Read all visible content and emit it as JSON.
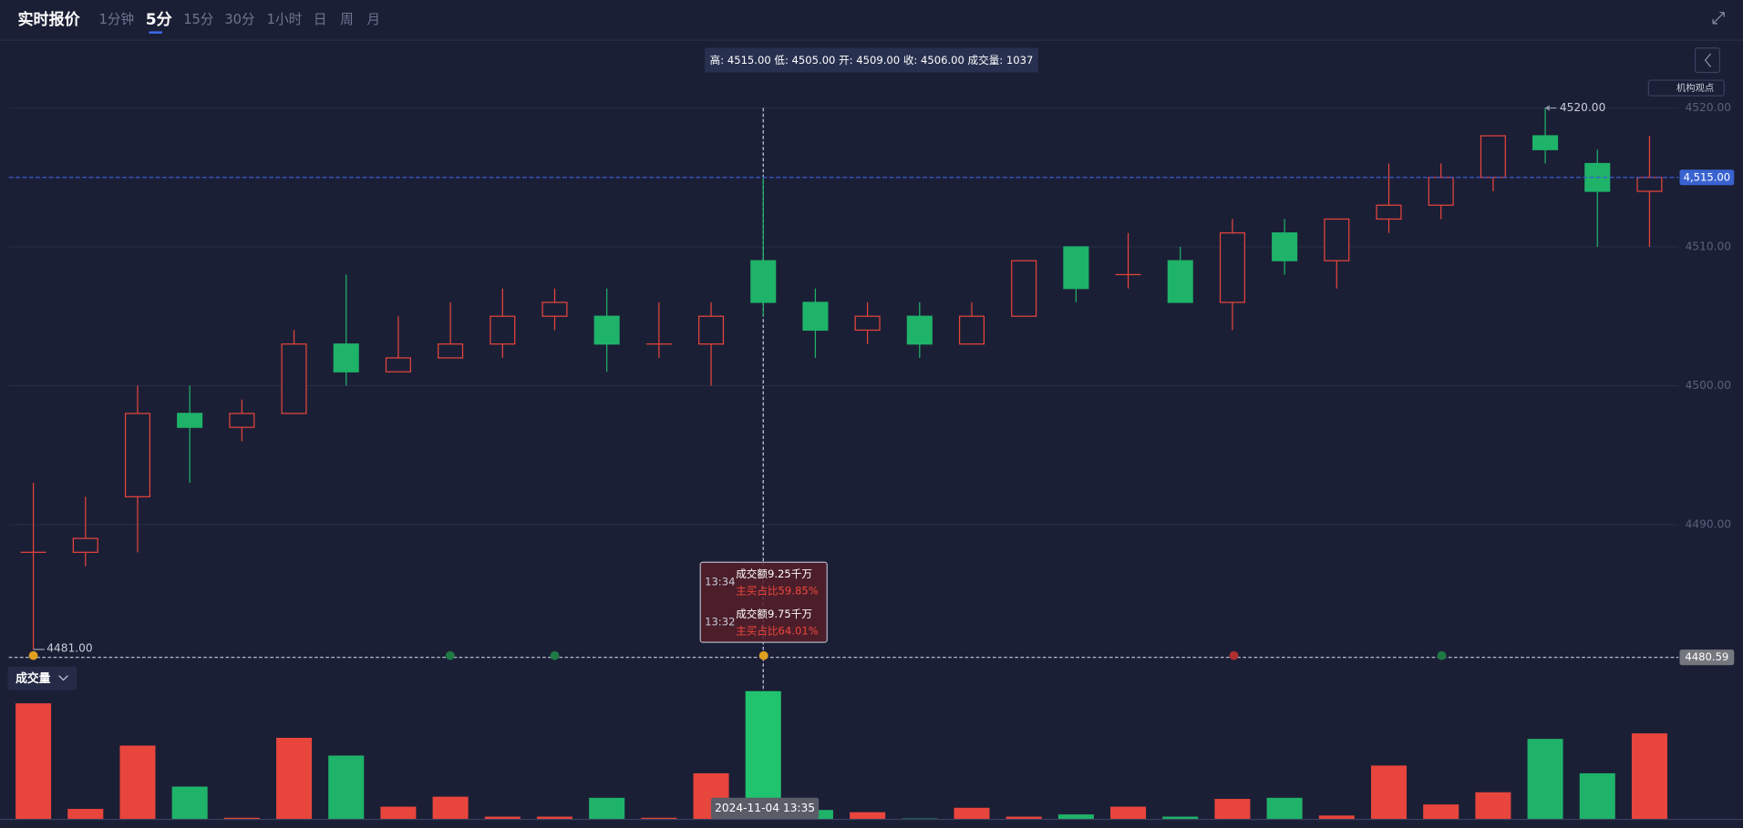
{
  "header": {
    "title": "实时报价",
    "tabs": [
      "1分钟",
      "5分",
      "15分",
      "30分",
      "1小时",
      "日",
      "周",
      "月"
    ],
    "active_tab": 1
  },
  "info_bar": "高: 4515.00 低: 4505.00 开: 4509.00 收: 4506.00 成交量: 1037",
  "view_button": "机构观点",
  "chart_data": {
    "type": "candlestick",
    "open": [
      4488,
      4488,
      4492,
      4498,
      4497,
      4498,
      4503,
      4501,
      4502,
      4503,
      4505,
      4505,
      4503,
      4503,
      4509,
      4506,
      4504,
      4505,
      4503,
      4505,
      4510,
      4508,
      4509,
      4506,
      4511,
      4509,
      4512,
      4513,
      4515,
      4518,
      4516,
      4514
    ],
    "high": [
      4493,
      4492,
      4500,
      4500,
      4499,
      4504,
      4508,
      4505,
      4506,
      4507,
      4507,
      4507,
      4506,
      4506,
      4515,
      4507,
      4506,
      4506,
      4506,
      4509,
      4510,
      4511,
      4510,
      4512,
      4512,
      4512,
      4516,
      4516,
      4518,
      4520,
      4517,
      4518
    ],
    "low": [
      4481,
      4487,
      4488,
      4493,
      4496,
      4498,
      4500,
      4501,
      4502,
      4502,
      4504,
      4501,
      4502,
      4500,
      4505,
      4502,
      4503,
      4502,
      4503,
      4505,
      4506,
      4507,
      4506,
      4504,
      4508,
      4507,
      4511,
      4512,
      4514,
      4516,
      4510,
      4510
    ],
    "close": [
      4488,
      4489,
      4498,
      4497,
      4498,
      4503,
      4501,
      4502,
      4503,
      4505,
      4506,
      4503,
      4503,
      4505,
      4506,
      4504,
      4505,
      4503,
      4505,
      4509,
      4507,
      4508,
      4506,
      4511,
      4509,
      4512,
      4513,
      4515,
      4518,
      4517,
      4514,
      4515
    ],
    "volume": [
      938,
      81,
      595,
      262,
      9,
      658,
      514,
      99,
      180,
      18,
      18,
      171,
      9,
      370,
      1037,
      72,
      54,
      3,
      90,
      18,
      36,
      99,
      18,
      162,
      171,
      27,
      433,
      117,
      216,
      649,
      370,
      694
    ],
    "ylim": [
      4480,
      4521
    ],
    "yticks": [
      {
        "value": 4490,
        "label": "4490.00"
      },
      {
        "value": 4500,
        "label": "4500.00"
      },
      {
        "value": 4510,
        "label": "4510.00"
      },
      {
        "value": 4520,
        "label": "4520.00"
      }
    ],
    "up_color": "#e8453c",
    "down_color": "#1fb36a",
    "last_price": {
      "value": 4515,
      "label": "4,515.00"
    },
    "low_line": {
      "value": 4480.59,
      "label": "4480.59"
    },
    "high_mark": {
      "value": 4520,
      "label": "4520.00"
    },
    "low_mark": {
      "value": 4481,
      "label": "4481.00"
    },
    "volume_label": "成交量",
    "crosshair_time": "2024-11-04 13:35",
    "tooltip": [
      {
        "time": "13:34",
        "amount": "成交额9.25千万",
        "ratio": "主买占比59.85%"
      },
      {
        "time": "13:32",
        "amount": "成交额9.75千万",
        "ratio": "主买占比64.01%"
      }
    ]
  }
}
